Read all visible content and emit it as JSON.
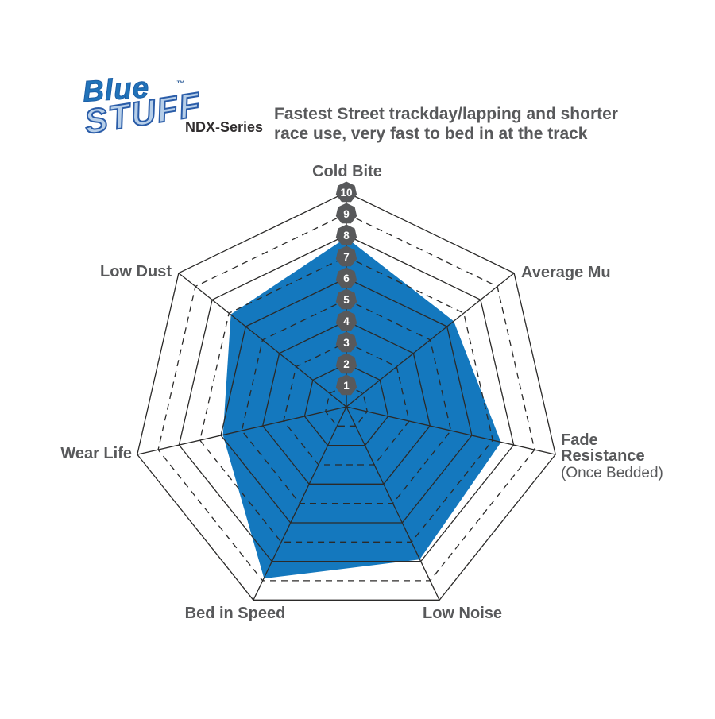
{
  "logo": {
    "blue": "Blue",
    "stuff": "STUFF",
    "trademark": "™",
    "series": "NDX-Series"
  },
  "header": {
    "title_line1": "Fastest Street trackday/lapping and shorter",
    "title_line2": "race use, very fast to bed in at the track"
  },
  "chart_data": {
    "type": "radar",
    "title": "EBC BlueStuff NDX-Series brake pad performance ratings",
    "axes": [
      {
        "lines": [
          "Cold Bite"
        ]
      },
      {
        "lines": [
          "Average Mu"
        ]
      },
      {
        "lines": [
          "Fade",
          "Resistance"
        ],
        "note": "(Once Bedded)"
      },
      {
        "lines": [
          "Low Noise"
        ]
      },
      {
        "lines": [
          "Bed in Speed"
        ]
      },
      {
        "lines": [
          "Wear Life"
        ]
      },
      {
        "lines": [
          "Low Dust"
        ]
      }
    ],
    "series": [
      {
        "name": "BlueStuff NDX-Series",
        "values": [
          8,
          6.5,
          7.5,
          8,
          9,
          6,
          7
        ]
      }
    ],
    "scale": {
      "min": 0,
      "max": 10,
      "ticks": [
        1,
        2,
        3,
        4,
        5,
        6,
        7,
        8,
        9,
        10
      ]
    },
    "grid": {
      "on": true,
      "solid_levels": [
        2,
        4,
        6,
        8,
        10
      ],
      "dashed_levels": [
        1,
        3,
        5,
        7,
        9
      ]
    },
    "legend_position": "none",
    "colors": {
      "series_fill": "#1478be",
      "series_halo": "#ffffff",
      "grid_line": "#2b2a29",
      "badge_fill": "#58595b",
      "badge_text": "#ffffff",
      "axis_label": "#58595b"
    }
  }
}
